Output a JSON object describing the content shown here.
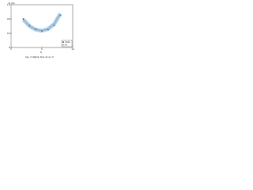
{
  "chart_data": {
    "type": "scatter",
    "title": "Fig. 4: Elliptic flow v2 vs. N",
    "y_label": "v2 (%)",
    "x_label": "N",
    "x": [
      2,
      3,
      4,
      5,
      6,
      7,
      8
    ],
    "series": [
      {
        "name": "data",
        "color": "#333333",
        "values": [
          0.8,
          0.62,
          0.52,
          0.46,
          0.5,
          0.62,
          0.9
        ]
      },
      {
        "name": "fit",
        "color": "#7fb2e0",
        "values": [
          0.78,
          0.6,
          0.5,
          0.47,
          0.52,
          0.66,
          0.95
        ]
      }
    ],
    "xlim": [
      0,
      10
    ],
    "xticks": [
      0,
      5,
      10
    ],
    "ylim": [
      0,
      1.2
    ],
    "yticks": [
      0,
      0.4,
      0.8,
      1.2
    ],
    "legend": "lower-right"
  }
}
